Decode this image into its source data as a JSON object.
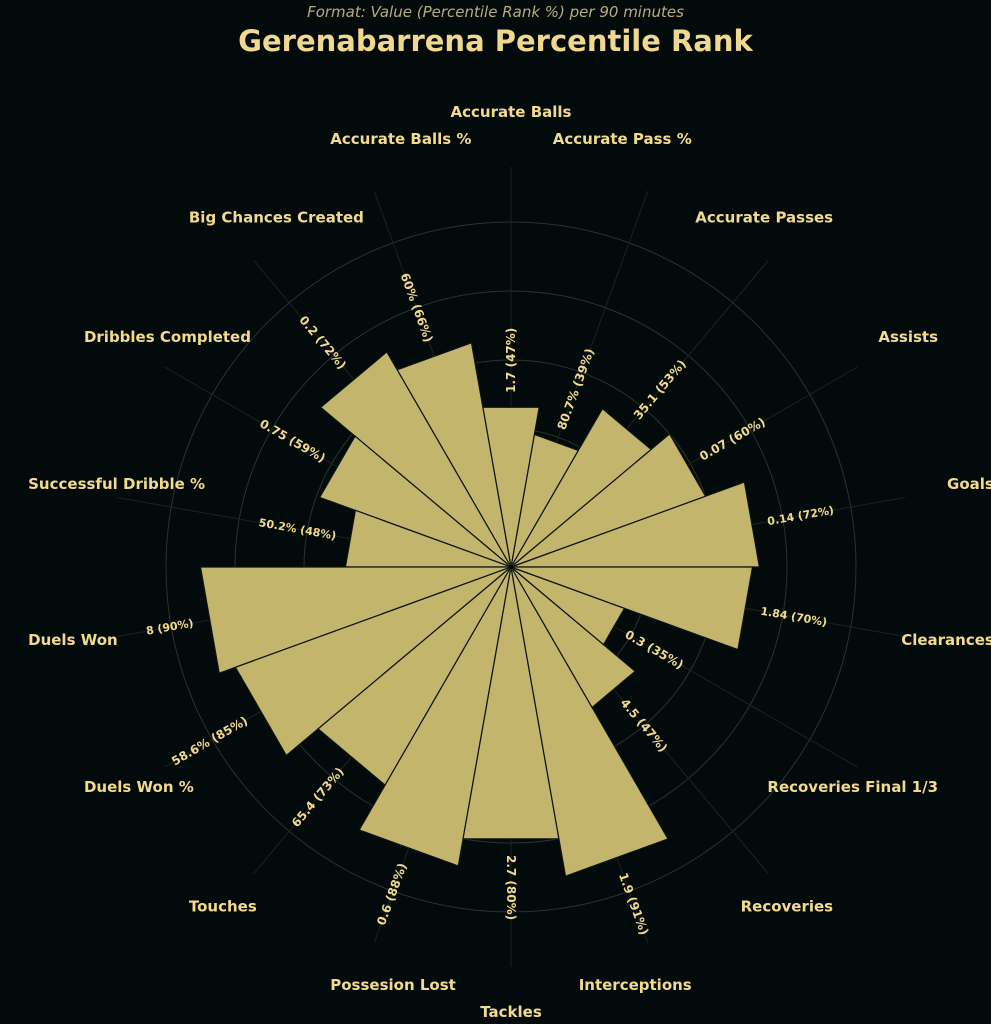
{
  "chart_data": {
    "type": "polar-bar",
    "subtitle": "Format: Value (Percentile Rank %) per 90 minutes",
    "title": "Gerenabarrena Percentile Rank",
    "rlim": [
      0,
      100
    ],
    "grid": true,
    "colors": {
      "background": "#020a0b",
      "bar": "#c3b56b",
      "bar_edge": "#0e1510",
      "text": "#f3da8c",
      "grid": "#2b3230"
    },
    "metrics": [
      {
        "name": "Goals",
        "value": "0.14",
        "percentile": 72
      },
      {
        "name": "Assists",
        "value": "0.07",
        "percentile": 60
      },
      {
        "name": "Accurate Passes",
        "value": "35.1",
        "percentile": 53
      },
      {
        "name": "Accurate Pass %",
        "value": "80.7%",
        "percentile": 39
      },
      {
        "name": "Accurate Balls",
        "value": "1.7",
        "percentile": 47
      },
      {
        "name": "Accurate Balls %",
        "value": "60%",
        "percentile": 66
      },
      {
        "name": "Big Chances Created",
        "value": "0.2",
        "percentile": 72
      },
      {
        "name": "Dribbles Completed",
        "value": "0.75",
        "percentile": 59
      },
      {
        "name": "Successful Dribble %",
        "value": "50.2%",
        "percentile": 48
      },
      {
        "name": "Duels Won",
        "value": "8",
        "percentile": 90
      },
      {
        "name": "Duels Won %",
        "value": "58.6%",
        "percentile": 85
      },
      {
        "name": "Touches",
        "value": "65.4",
        "percentile": 73
      },
      {
        "name": "Possesion Lost",
        "value": "0.6",
        "percentile": 88
      },
      {
        "name": "Tackles",
        "value": "2.7",
        "percentile": 80
      },
      {
        "name": "Interceptions",
        "value": "1.9",
        "percentile": 91
      },
      {
        "name": "Recoveries",
        "value": "4.5",
        "percentile": 47
      },
      {
        "name": "Recoveries Final 1/3",
        "value": "0.3",
        "percentile": 35
      },
      {
        "name": "Clearances",
        "value": "1.84",
        "percentile": 70
      }
    ]
  }
}
